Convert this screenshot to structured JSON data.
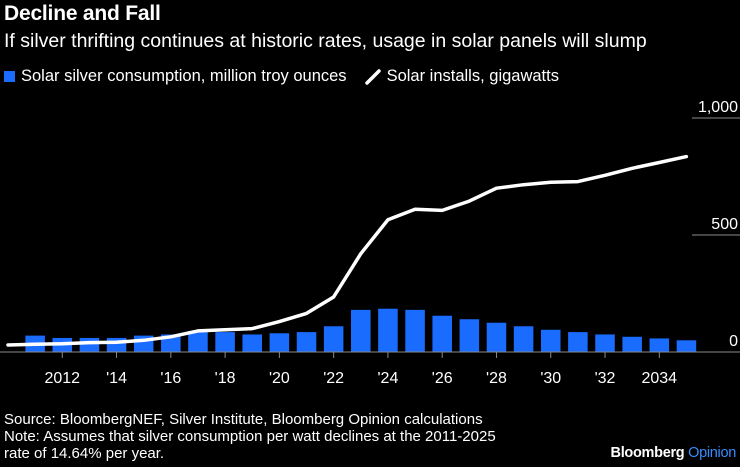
{
  "chart_data": {
    "type": "bar",
    "title": "Decline and Fall",
    "subtitle": "If silver thrifting continues at historic rates, usage in solar panels will slump",
    "legend": [
      {
        "label": "Solar silver consumption, million troy ounces",
        "color": "#1a6cff",
        "kind": "bar"
      },
      {
        "label": "Solar installs, gigawatts",
        "color": "#ffffff",
        "kind": "line"
      }
    ],
    "x": [
      2010,
      2011,
      2012,
      2013,
      2014,
      2015,
      2016,
      2017,
      2018,
      2019,
      2020,
      2021,
      2022,
      2023,
      2024,
      2025,
      2026,
      2027,
      2028,
      2029,
      2030,
      2031,
      2032,
      2033,
      2034,
      2035
    ],
    "x_tick_values": [
      2012,
      2014,
      2016,
      2018,
      2020,
      2022,
      2024,
      2026,
      2028,
      2030,
      2032,
      2034
    ],
    "x_tick_labels": [
      "2012",
      "'14",
      "'16",
      "'18",
      "'20",
      "'22",
      "'24",
      "'26",
      "'28",
      "'30",
      "'32",
      "2034"
    ],
    "series": [
      {
        "name": "Solar silver consumption, million troy ounces",
        "kind": "bar",
        "color": "#1a6cff",
        "values": [
          null,
          70,
          60,
          60,
          60,
          70,
          75,
          90,
          85,
          75,
          80,
          85,
          110,
          180,
          185,
          180,
          155,
          140,
          125,
          110,
          95,
          85,
          75,
          65,
          58,
          50
        ]
      },
      {
        "name": "Solar installs, gigawatts",
        "kind": "line",
        "color": "#ffffff",
        "values": [
          30,
          33,
          35,
          40,
          42,
          50,
          65,
          90,
          95,
          100,
          130,
          165,
          235,
          420,
          565,
          610,
          605,
          645,
          700,
          715,
          725,
          728,
          755,
          785,
          810,
          835
        ]
      }
    ],
    "y_ticks": [
      0,
      500,
      1000
    ],
    "y_tick_labels": [
      "0",
      "500",
      "1,000"
    ],
    "ylim": [
      0,
      1000
    ],
    "xlim": [
      2010,
      2035.5
    ],
    "grid": true
  },
  "footer": {
    "source": "Source: BloombergNEF, Silver Institute, Bloomberg Opinion calculations",
    "note_line1": "Note: Assumes that silver consumption per watt declines at the 2011-2025",
    "note_line2": "rate of 14.64% per year."
  },
  "brand": {
    "part1": "Bloomberg",
    "part2": "Opinion"
  }
}
